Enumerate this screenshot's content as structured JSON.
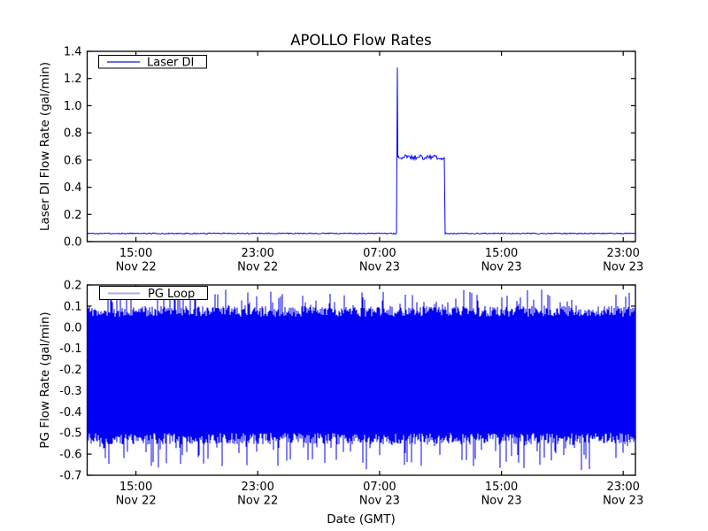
{
  "figure": {
    "background": "#ffffff"
  },
  "chart_data": [
    {
      "type": "line",
      "title": "APOLLO Flow Rates",
      "ylabel": "Laser DI Flow Rate (gal/min)",
      "legend": {
        "label": "Laser DI",
        "position": "upper left",
        "sample_color": "#3b3bdc"
      },
      "line_color": "#0000ff",
      "ylim": [
        0.0,
        1.4
      ],
      "ytick_labels": [
        "0.0",
        "0.2",
        "0.4",
        "0.6",
        "0.8",
        "1.0",
        "1.2",
        "1.4"
      ],
      "grid": "off",
      "x_axis": {
        "unit": "hours since Nov 22 00:00 GMT",
        "range": [
          11.8,
          47.8
        ],
        "ticks": [
          {
            "hour": 15,
            "time": "15:00",
            "date": "Nov 22"
          },
          {
            "hour": 23,
            "time": "23:00",
            "date": "Nov 22"
          },
          {
            "hour": 31,
            "time": "07:00",
            "date": "Nov 23"
          },
          {
            "hour": 39,
            "time": "15:00",
            "date": "Nov 23"
          },
          {
            "hour": 47,
            "time": "23:00",
            "date": "Nov 23"
          }
        ]
      },
      "series_segments": [
        {
          "from_hour": 11.8,
          "to_hour": 32.15,
          "value": 0.06,
          "noise": 0.004,
          "description": "baseline flow"
        },
        {
          "from_hour": 32.15,
          "to_hour": 35.3,
          "value": 0.62,
          "noise": 0.018,
          "description": "flow-on plateau ~08:10-11:20 Nov 23"
        },
        {
          "from_hour": 35.3,
          "to_hour": 47.8,
          "value": 0.06,
          "noise": 0.004,
          "description": "baseline flow"
        }
      ],
      "spike": {
        "hour": 32.17,
        "peak_value": 1.28,
        "description": "startup spike ~08:10 Nov 23"
      }
    },
    {
      "type": "line",
      "ylabel": "PG Flow Rate (gal/min)",
      "xlabel": "Date (GMT)",
      "legend": {
        "label": "PG Loop",
        "position": "upper left",
        "sample_color": "#a9b0f2"
      },
      "line_color": "#0000f4",
      "ylim": [
        -0.7,
        0.2
      ],
      "ytick_labels": [
        "0.2",
        "0.1",
        "0.0",
        "-0.1",
        "-0.2",
        "-0.3",
        "-0.4",
        "-0.5",
        "-0.6",
        "-0.7"
      ],
      "grid": "off",
      "x_axis": {
        "unit": "hours since Nov 22 00:00 GMT",
        "range": [
          11.8,
          47.8
        ],
        "ticks": [
          {
            "hour": 15,
            "time": "15:00",
            "date": "Nov 22"
          },
          {
            "hour": 23,
            "time": "23:00",
            "date": "Nov 22"
          },
          {
            "hour": 31,
            "time": "07:00",
            "date": "Nov 23"
          },
          {
            "hour": 39,
            "time": "15:00",
            "date": "Nov 23"
          },
          {
            "hour": 47,
            "time": "23:00",
            "date": "Nov 23"
          }
        ]
      },
      "noise_band": {
        "dense_top": 0.1,
        "dense_bottom": -0.5,
        "spike_max": 0.18,
        "spike_min": -0.68,
        "mean": -0.2,
        "description": "continuous high-frequency oscillation spanning the full time range"
      }
    }
  ]
}
